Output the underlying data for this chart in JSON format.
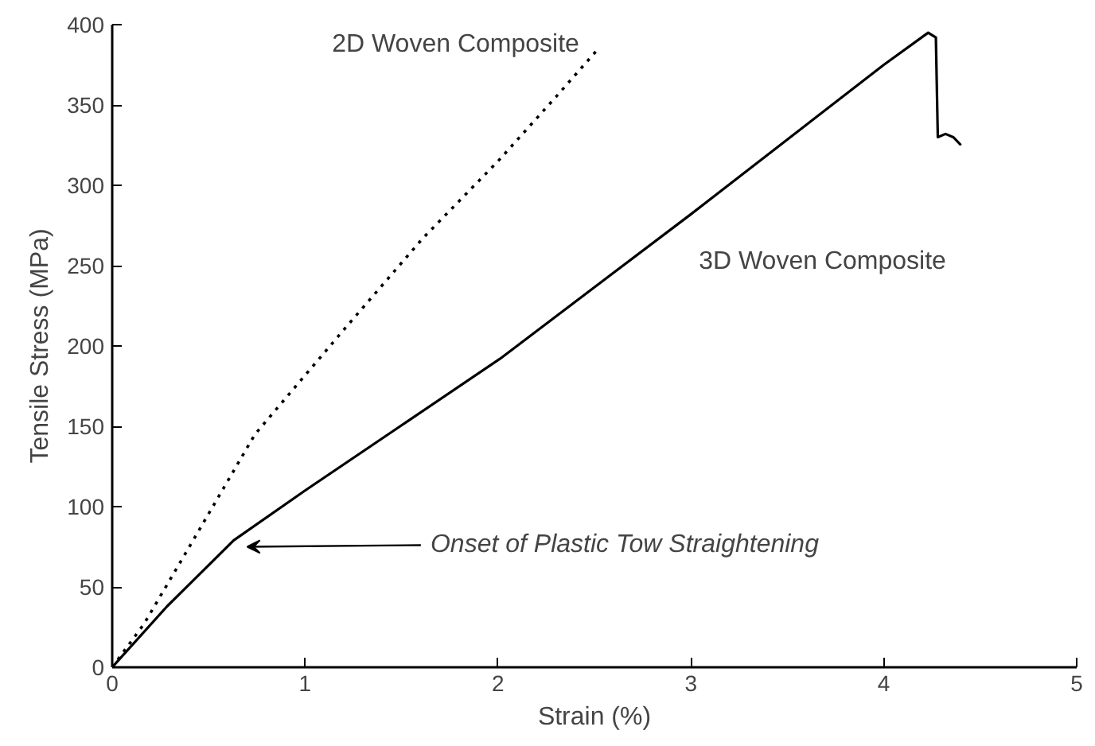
{
  "chart_data": {
    "type": "line",
    "xlabel": "Strain (%)",
    "ylabel": "Tensile Stress (MPa)",
    "xlim": [
      0,
      5
    ],
    "ylim": [
      0,
      400
    ],
    "xticks": [
      0,
      1,
      2,
      3,
      4,
      5
    ],
    "yticks": [
      0,
      50,
      100,
      150,
      200,
      250,
      300,
      350,
      400
    ],
    "grid": false,
    "legend": false,
    "marker": "none",
    "series": [
      {
        "name": "2D Woven Composite",
        "color": "#000000",
        "line_style": "dotted",
        "x": [
          0,
          0.165,
          0.4,
          0.74,
          1.2,
          1.61,
          2.0,
          2.3,
          2.52
        ],
        "values": [
          0,
          27,
          75,
          145,
          210,
          267,
          315,
          355,
          385
        ]
      },
      {
        "name": "3D Woven Composite",
        "color": "#000000",
        "line_style": "solid",
        "x": [
          0,
          0.285,
          0.63,
          1.0,
          2.01,
          3.0,
          4.0,
          4.23,
          4.27,
          4.28,
          4.32,
          4.36,
          4.4
        ],
        "values": [
          0,
          38,
          79,
          110,
          192,
          282,
          375,
          395,
          392,
          330,
          332,
          330,
          325
        ]
      }
    ],
    "annotations": [
      {
        "text": "Onset of Plastic Tow Straightening",
        "x": 0.65,
        "y": 78
      }
    ]
  }
}
